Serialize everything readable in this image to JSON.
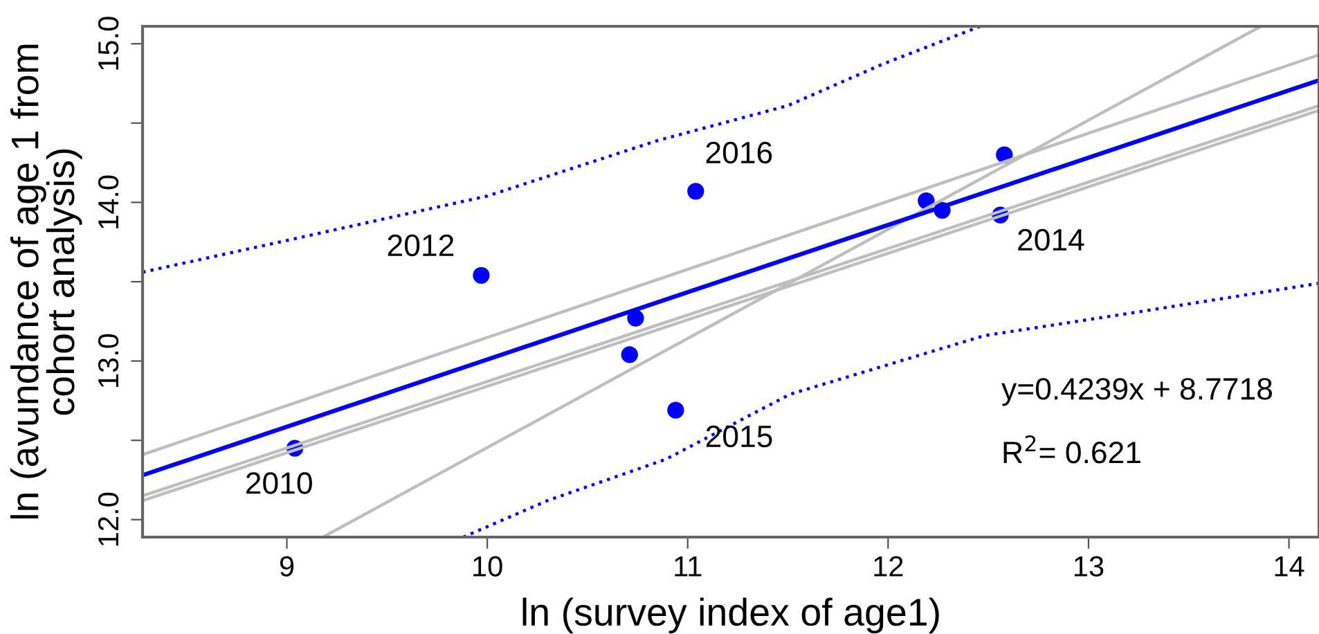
{
  "chart_data": {
    "type": "scatter",
    "xlabel": "ln (survey index of age1)",
    "ylabel": "ln (avundance of age 1 from\ncohort analysis)",
    "xlim": [
      8.28,
      14.15
    ],
    "ylim": [
      11.89,
      15.11
    ],
    "xticks": [
      9,
      10,
      11,
      12,
      13,
      14
    ],
    "yticks": [
      {
        "value": 12,
        "label": "12.0"
      },
      {
        "value": 12.5,
        "label": null
      },
      {
        "value": 13,
        "label": "13.0"
      },
      {
        "value": 13.5,
        "label": null
      },
      {
        "value": 14,
        "label": "14.0"
      },
      {
        "value": 14.5,
        "label": null
      },
      {
        "value": 15,
        "label": "15.0"
      }
    ],
    "grid": false,
    "legend": false,
    "series": [
      {
        "type": "line",
        "color": "#bebebe",
        "line_style": "solid",
        "marker": "none",
        "x": [
          9.18,
          13.86
        ],
        "values": [
          11.89,
          15.11
        ]
      },
      {
        "type": "line",
        "color": "#bebebe",
        "line_style": "solid",
        "marker": "none",
        "x": [
          8.28,
          14.15
        ],
        "values": [
          12.41,
          14.93
        ]
      },
      {
        "type": "line",
        "color": "#bebebe",
        "line_style": "solid",
        "marker": "none",
        "x": [
          8.28,
          14.15
        ],
        "values": [
          12.15,
          14.61
        ]
      },
      {
        "type": "line",
        "color": "#bebebe",
        "line_style": "solid",
        "marker": "none",
        "x": [
          8.28,
          14.15
        ],
        "values": [
          12.12,
          14.58
        ]
      },
      {
        "type": "line",
        "color": "#0000ff",
        "line_style": "dotted",
        "marker": "none",
        "x": [
          8.28,
          9,
          10,
          10.85,
          11.5,
          11.97,
          12.46
        ],
        "values": [
          13.56,
          13.76,
          14.04,
          14.39,
          14.61,
          14.87,
          15.11
        ]
      },
      {
        "type": "line",
        "color": "#0000ff",
        "line_style": "dotted",
        "marker": "none",
        "x": [
          9.88,
          10.3,
          10.89,
          11.51,
          12.48,
          13.2,
          14.15
        ],
        "values": [
          11.89,
          12.12,
          12.38,
          12.79,
          13.16,
          13.3,
          13.49
        ]
      },
      {
        "type": "line",
        "color": "#0000ff",
        "line_style": "solid",
        "marker": "none",
        "x": [
          8.28,
          14.15
        ],
        "values": [
          12.28,
          14.77
        ]
      },
      {
        "color": "#0000ff",
        "marker": "circle",
        "x": [
          9.04,
          9.97,
          10.71,
          10.74,
          11.04,
          10.94,
          12.19,
          12.27,
          12.58,
          12.56
        ],
        "values": [
          12.45,
          13.54,
          13.04,
          13.27,
          14.07,
          12.69,
          14.01,
          13.95,
          14.3,
          13.92
        ]
      }
    ],
    "annotations": [
      {
        "text": "2010",
        "x": 9.04,
        "y": 12.45
      },
      {
        "text": "2012",
        "x": 9.97,
        "y": 13.54
      },
      {
        "text": "2016",
        "x": 11.04,
        "y": 14.07
      },
      {
        "text": "2015",
        "x": 10.94,
        "y": 12.69
      },
      {
        "text": "2014",
        "x": 12.56,
        "y": 13.92
      },
      "y=0.4239x + 8.7718",
      "R$^{2}$= 0.621"
    ]
  }
}
